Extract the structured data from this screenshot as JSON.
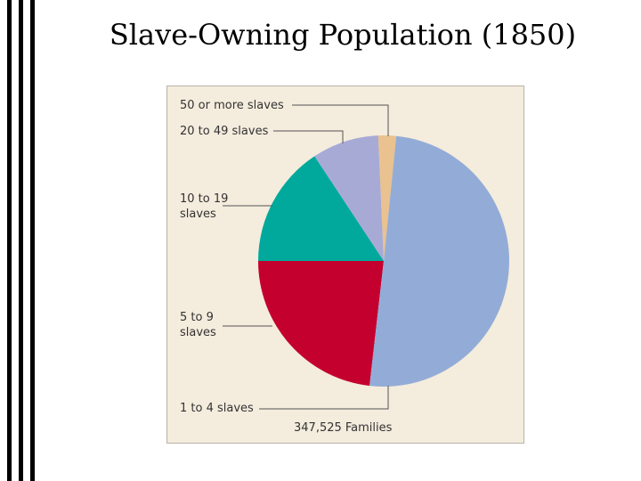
{
  "chart_data": {
    "type": "pie",
    "title": "Slave-Owning Population (1850)",
    "categories": [
      "1 to 4 slaves",
      "5 to 9 slaves",
      "10 to 19 slaves",
      "20 to 49 slaves",
      "50 or more slaves"
    ],
    "values": [
      50.2,
      23.2,
      15.7,
      8.6,
      2.3
    ],
    "colors": [
      "#93acd7",
      "#c4002f",
      "#00a99c",
      "#a8aad6",
      "#e9c28f"
    ],
    "note": "347,525 Families"
  }
}
